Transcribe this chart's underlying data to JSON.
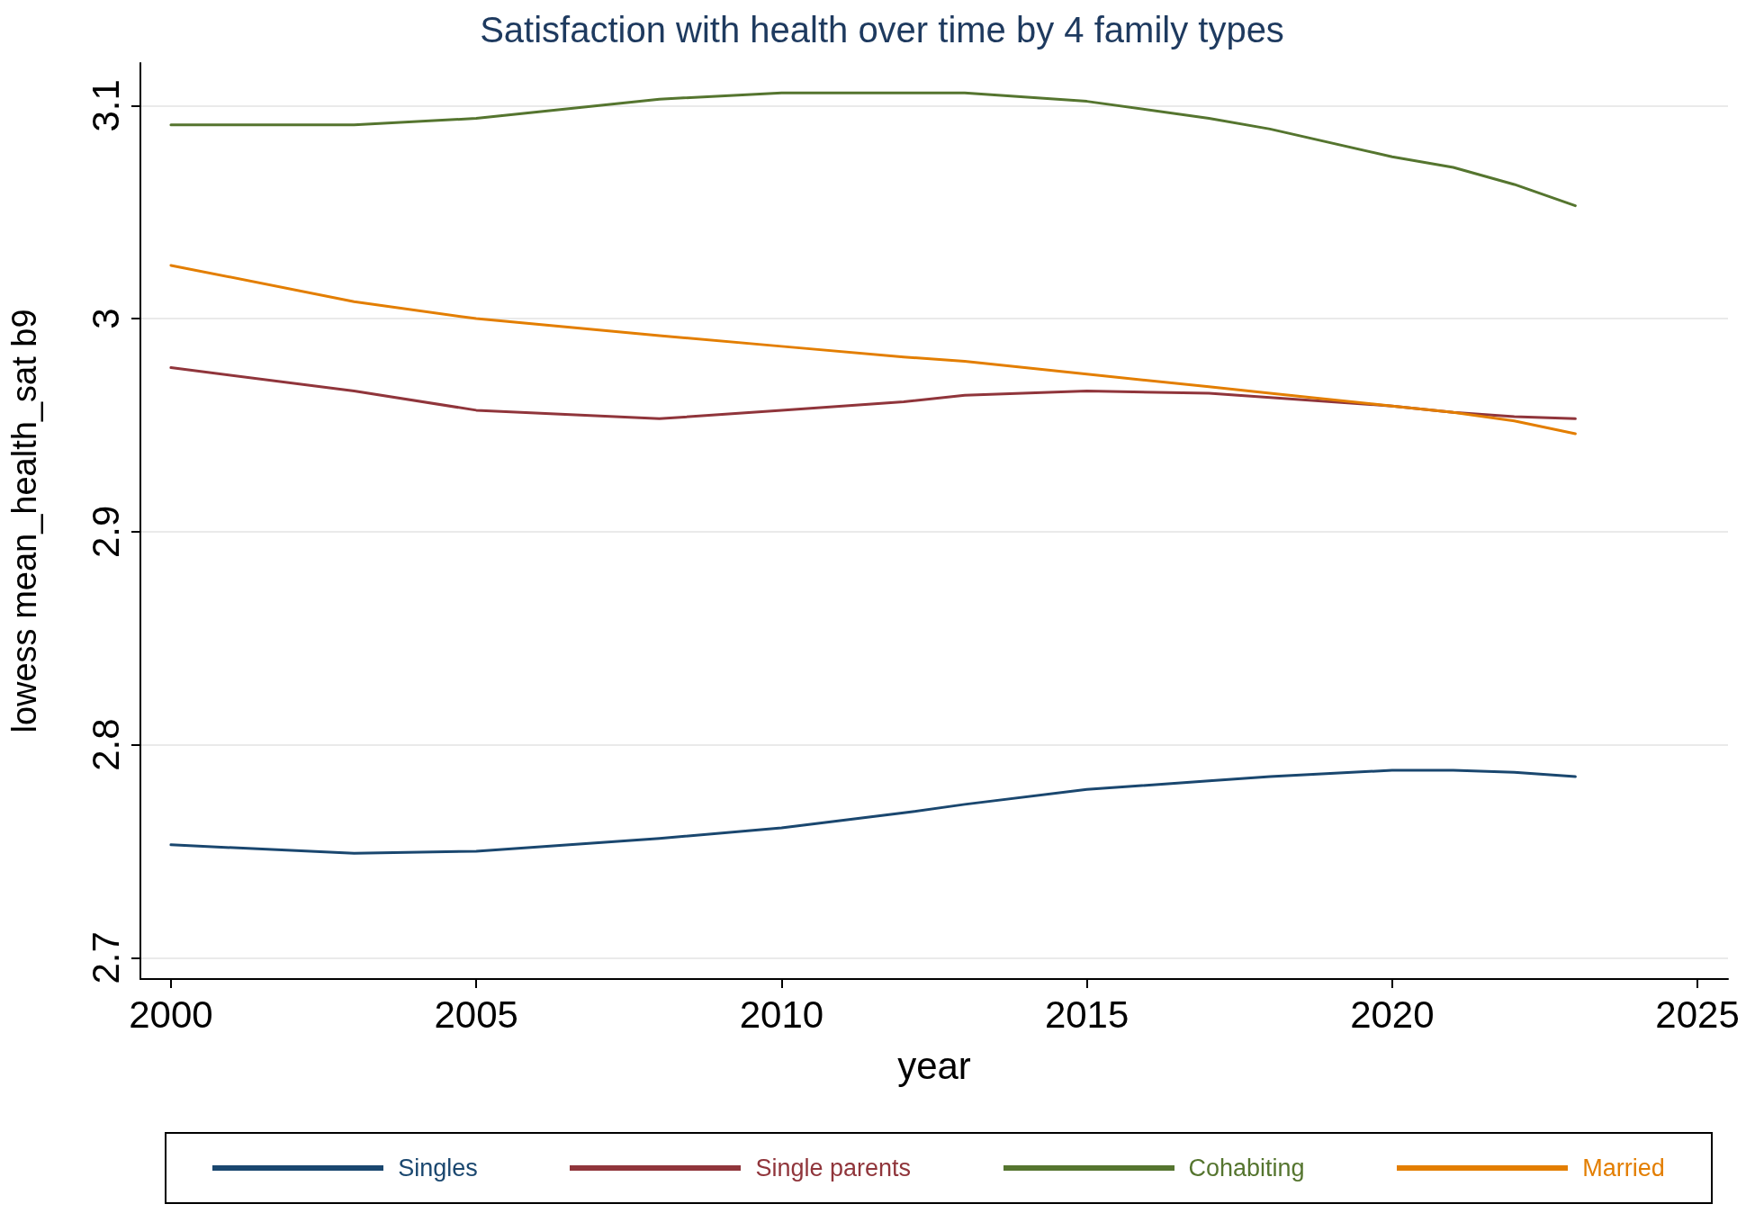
{
  "chart_data": {
    "type": "line",
    "title": "Satisfaction with health over time by 4 family types",
    "xlabel": "year",
    "ylabel": "lowess mean_health_sat b9",
    "x": [
      2000,
      2003,
      2005,
      2008,
      2010,
      2012,
      2013,
      2015,
      2017,
      2018,
      2020,
      2021,
      2022,
      2023
    ],
    "series": [
      {
        "name": "Singles",
        "color": "#1a476f",
        "values": [
          2.753,
          2.749,
          2.75,
          2.756,
          2.761,
          2.768,
          2.772,
          2.779,
          2.783,
          2.785,
          2.788,
          2.788,
          2.787,
          2.785
        ]
      },
      {
        "name": "Single parents",
        "color": "#90353b",
        "values": [
          2.977,
          2.966,
          2.957,
          2.953,
          2.957,
          2.961,
          2.964,
          2.966,
          2.965,
          2.963,
          2.959,
          2.956,
          2.954,
          2.953
        ]
      },
      {
        "name": "Cohabiting",
        "color": "#55752f",
        "values": [
          3.091,
          3.091,
          3.094,
          3.103,
          3.106,
          3.106,
          3.106,
          3.102,
          3.094,
          3.089,
          3.076,
          3.071,
          3.063,
          3.053
        ]
      },
      {
        "name": "Married",
        "color": "#e37e00",
        "values": [
          3.025,
          3.008,
          3.0,
          2.992,
          2.987,
          2.982,
          2.98,
          2.974,
          2.968,
          2.965,
          2.959,
          2.956,
          2.952,
          2.946
        ]
      }
    ],
    "xlim": [
      1999.5,
      2025.5
    ],
    "xticks": [
      2000,
      2005,
      2010,
      2015,
      2020,
      2025
    ],
    "ylim": [
      2.69,
      3.12
    ],
    "yticks": [
      2.7,
      2.8,
      2.9,
      3.0,
      3.1
    ],
    "grid": "y",
    "legend": "bottom",
    "marker": "none",
    "line_style": "solid"
  }
}
